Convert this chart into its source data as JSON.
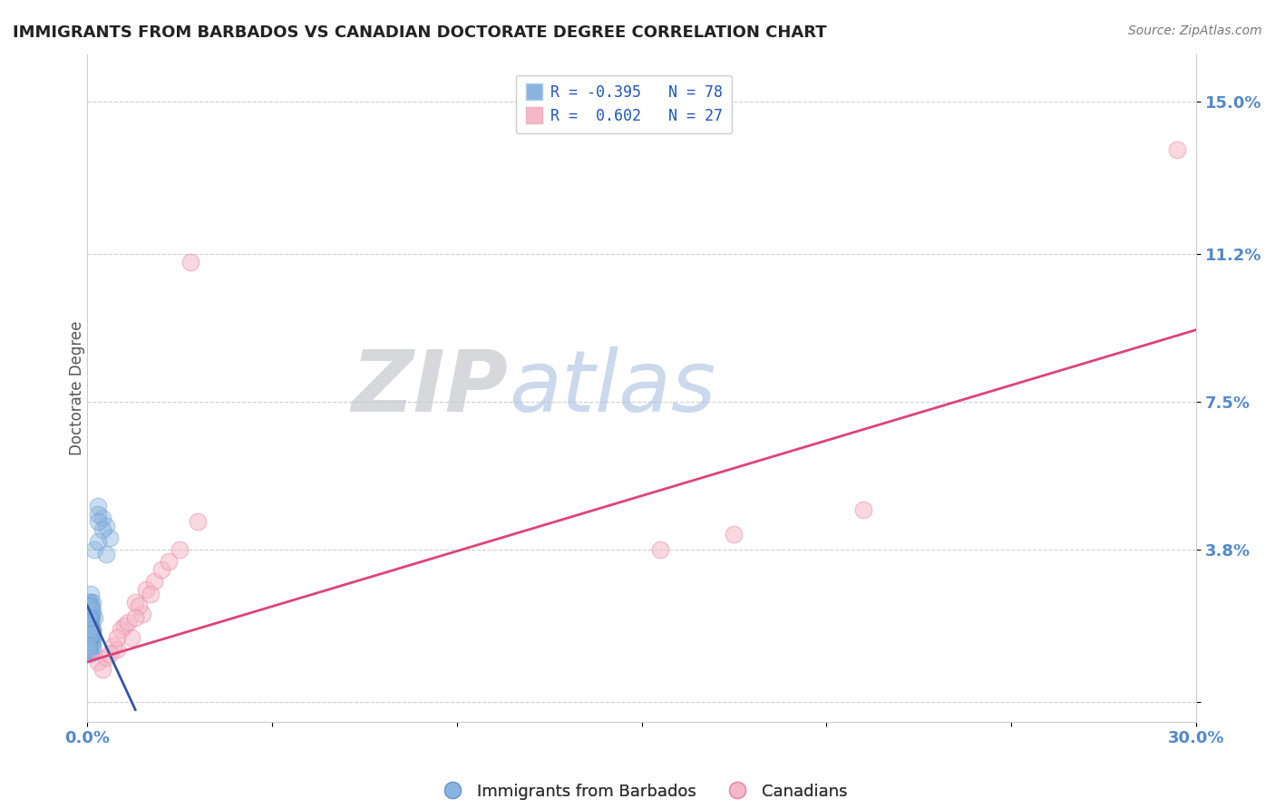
{
  "title": "IMMIGRANTS FROM BARBADOS VS CANADIAN DOCTORATE DEGREE CORRELATION CHART",
  "source": "Source: ZipAtlas.com",
  "ylabel": "Doctorate Degree",
  "xlim": [
    0.0,
    0.3
  ],
  "ylim": [
    -0.005,
    0.162
  ],
  "yticks": [
    0.0,
    0.038,
    0.075,
    0.112,
    0.15
  ],
  "ytick_labels": [
    "",
    "3.8%",
    "7.5%",
    "11.2%",
    "15.0%"
  ],
  "xticks": [
    0.0,
    0.05,
    0.1,
    0.15,
    0.2,
    0.25,
    0.3
  ],
  "xtick_labels": [
    "0.0%",
    "",
    "",
    "",
    "",
    "",
    "30.0%"
  ],
  "blue_color": "#8ab4e0",
  "pink_color": "#f5b8c8",
  "blue_edge_color": "#6699cc",
  "pink_edge_color": "#e888a8",
  "blue_line_color": "#3355aa",
  "pink_line_color": "#dd4477",
  "legend_blue_label": "R = -0.395   N = 78",
  "legend_pink_label": "R =  0.602   N = 27",
  "legend_bottom_blue": "Immigrants from Barbados",
  "legend_bottom_pink": "Canadians",
  "R_blue": -0.395,
  "R_pink": 0.602,
  "background_color": "#ffffff",
  "grid_color": "#bbbbbb",
  "watermark_zip_color": "#c8d4e8",
  "watermark_atlas_color": "#b0c8e8",
  "blue_scatter_x": [
    0.0005,
    0.001,
    0.0008,
    0.0015,
    0.0,
    0.0005,
    0.001,
    0.0,
    0.0008,
    0.0012,
    0.0005,
    0.001,
    0.0,
    0.0008,
    0.002,
    0.001,
    0.0005,
    0.0015,
    0.0005,
    0.001,
    0.0005,
    0.0,
    0.0008,
    0.001,
    0.0015,
    0.0005,
    0.001,
    0.0005,
    0.0008,
    0.0012,
    0.001,
    0.0005,
    0.0,
    0.001,
    0.0005,
    0.0015,
    0.0005,
    0.001,
    0.0008,
    0.0005,
    0.001,
    0.0005,
    0.0015,
    0.0005,
    0.001,
    0.0,
    0.0005,
    0.0005,
    0.001,
    0.0015,
    0.0005,
    0.001,
    0.0005,
    0.0008,
    0.0015,
    0.001,
    0.0005,
    0.0015,
    0.0005,
    0.001,
    0.0005,
    0.0,
    0.0005,
    0.001,
    0.0015,
    0.0005,
    0.001,
    0.0005,
    0.004,
    0.003,
    0.005,
    0.003,
    0.006,
    0.002,
    0.004,
    0.003,
    0.003,
    0.005
  ],
  "blue_scatter_y": [
    0.022,
    0.025,
    0.015,
    0.018,
    0.021,
    0.013,
    0.027,
    0.016,
    0.019,
    0.022,
    0.014,
    0.017,
    0.02,
    0.023,
    0.021,
    0.015,
    0.018,
    0.025,
    0.012,
    0.016,
    0.022,
    0.019,
    0.017,
    0.021,
    0.016,
    0.02,
    0.023,
    0.013,
    0.019,
    0.021,
    0.015,
    0.019,
    0.023,
    0.017,
    0.022,
    0.014,
    0.025,
    0.012,
    0.018,
    0.016,
    0.02,
    0.024,
    0.013,
    0.018,
    0.017,
    0.021,
    0.015,
    0.02,
    0.023,
    0.018,
    0.016,
    0.021,
    0.013,
    0.017,
    0.023,
    0.018,
    0.021,
    0.015,
    0.019,
    0.018,
    0.016,
    0.024,
    0.013,
    0.018,
    0.017,
    0.021,
    0.024,
    0.014,
    0.046,
    0.049,
    0.044,
    0.047,
    0.041,
    0.038,
    0.043,
    0.045,
    0.04,
    0.037
  ],
  "pink_scatter_x": [
    0.003,
    0.008,
    0.004,
    0.012,
    0.007,
    0.01,
    0.005,
    0.015,
    0.009,
    0.013,
    0.006,
    0.011,
    0.016,
    0.008,
    0.014,
    0.013,
    0.018,
    0.02,
    0.028,
    0.022,
    0.025,
    0.03,
    0.017,
    0.155,
    0.175,
    0.21,
    0.295
  ],
  "pink_scatter_y": [
    0.01,
    0.013,
    0.008,
    0.016,
    0.014,
    0.019,
    0.011,
    0.022,
    0.018,
    0.025,
    0.012,
    0.02,
    0.028,
    0.016,
    0.024,
    0.021,
    0.03,
    0.033,
    0.11,
    0.035,
    0.038,
    0.045,
    0.027,
    0.038,
    0.042,
    0.048,
    0.138
  ],
  "blue_line_x": [
    0.0,
    0.013
  ],
  "blue_line_y_start": 0.024,
  "blue_line_y_end": -0.002,
  "pink_line_x": [
    0.0,
    0.3
  ],
  "pink_line_y_start": 0.01,
  "pink_line_y_end": 0.093
}
